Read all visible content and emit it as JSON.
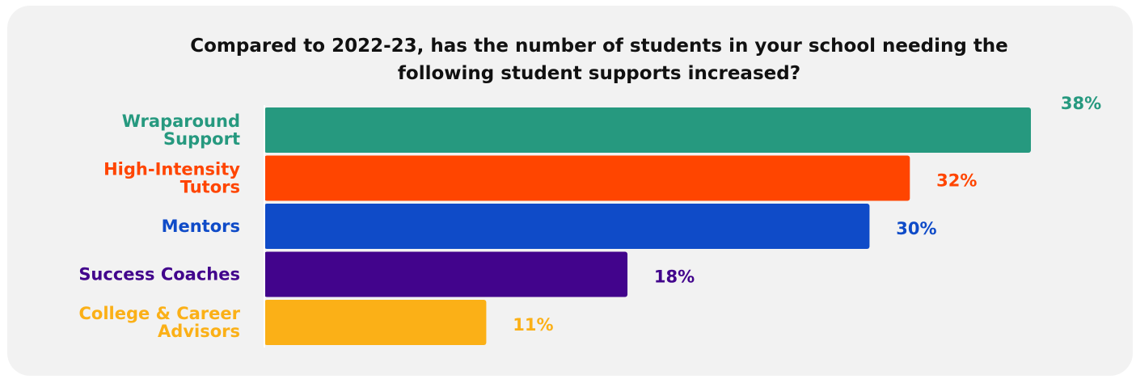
{
  "chart_data": {
    "type": "bar",
    "orientation": "horizontal",
    "title_lines": [
      "Compared to 2022-23, has the number of students in your school needing the",
      "following student supports increased?"
    ],
    "categories": [
      [
        "Wraparound",
        "Support"
      ],
      [
        "High-Intensity",
        "Tutors"
      ],
      [
        "Mentors"
      ],
      [
        "Success Coaches"
      ],
      [
        "College & Career",
        "Advisors"
      ]
    ],
    "values": [
      38,
      32,
      30,
      18,
      11
    ],
    "value_labels": [
      "38%",
      "32%",
      "30%",
      "18%",
      "11%"
    ],
    "colors": [
      "#26997f",
      "#ff4500",
      "#0f4bc8",
      "#42048c",
      "#fbb017"
    ],
    "xlim": [
      0,
      38
    ],
    "grid": false,
    "legend": "none"
  }
}
